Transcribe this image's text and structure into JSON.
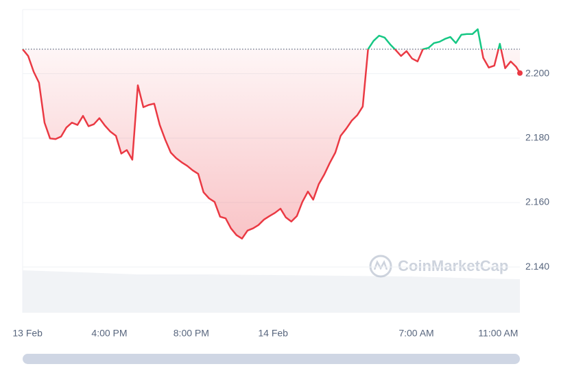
{
  "chart_data": {
    "type": "line",
    "watermark": "CoinMarketCap",
    "x": [
      11.76,
      12.03,
      12.3,
      12.56,
      12.83,
      13.1,
      13.37,
      13.64,
      13.9,
      14.17,
      14.44,
      14.71,
      14.98,
      15.24,
      15.51,
      15.78,
      16.05,
      16.32,
      16.58,
      16.85,
      17.12,
      17.39,
      17.66,
      17.92,
      18.19,
      18.46,
      18.73,
      19.0,
      19.26,
      19.53,
      19.8,
      20.07,
      20.34,
      20.6,
      20.87,
      21.14,
      21.41,
      21.68,
      21.94,
      22.21,
      22.48,
      22.75,
      23.02,
      23.28,
      23.55,
      23.82,
      24.09,
      24.36,
      24.62,
      24.89,
      25.16,
      25.43,
      25.7,
      25.96,
      26.23,
      26.5,
      26.77,
      27.04,
      27.3,
      27.57,
      27.84,
      28.11,
      28.38,
      28.64,
      28.91,
      29.18,
      29.45,
      29.72,
      29.98,
      30.25,
      30.52,
      30.79,
      31.06,
      31.32,
      31.59,
      31.86,
      32.13,
      32.4,
      32.66,
      32.93,
      33.2,
      33.47,
      33.74,
      34.0,
      34.27,
      34.54,
      34.81,
      35.08,
      35.34,
      35.61,
      35.88,
      36.06
    ],
    "values": [
      2.2076,
      2.2055,
      2.2006,
      2.1972,
      2.1848,
      2.1799,
      2.1797,
      2.1805,
      2.1833,
      2.1848,
      2.1841,
      2.1869,
      2.1837,
      2.1843,
      2.1862,
      2.1839,
      2.182,
      2.1807,
      2.1752,
      2.1763,
      2.1733,
      2.1964,
      2.1896,
      2.1903,
      2.1907,
      2.1841,
      2.1795,
      2.1755,
      2.1738,
      2.1725,
      2.1714,
      2.17,
      2.1689,
      2.1632,
      2.1613,
      2.1602,
      2.1556,
      2.1551,
      2.152,
      2.1499,
      2.1488,
      2.1513,
      2.152,
      2.153,
      2.1547,
      2.1558,
      2.1568,
      2.1581,
      2.1554,
      2.1541,
      2.1558,
      2.1602,
      2.1634,
      2.1609,
      2.1657,
      2.1687,
      2.1723,
      2.1755,
      2.1807,
      2.1829,
      2.1854,
      2.1871,
      2.1898,
      2.2076,
      2.2102,
      2.2118,
      2.2112,
      2.2091,
      2.2074,
      2.2055,
      2.207,
      2.2047,
      2.2038,
      2.2076,
      2.208,
      2.2095,
      2.2099,
      2.2108,
      2.2114,
      2.2095,
      2.2121,
      2.2123,
      2.2123,
      2.2138,
      2.2049,
      2.2019,
      2.2025,
      2.2093,
      2.2017,
      2.2038,
      2.2021,
      2.2002
    ],
    "baseline": 2.2076,
    "color_up": "#16c784",
    "color_down": "#ea3943",
    "xlim": [
      11.76,
      36.06
    ],
    "xticks": [
      {
        "value": 12,
        "label": "13 Feb"
      },
      {
        "value": 16,
        "label": "4:00 PM"
      },
      {
        "value": 20,
        "label": "8:00 PM"
      },
      {
        "value": 24,
        "label": "14 Feb"
      },
      {
        "value": 31,
        "label": "7:00 AM"
      },
      {
        "value": 35,
        "label": "11:00 AM"
      }
    ],
    "ylim": [
      2.1258,
      2.2199
    ],
    "yticks": [
      {
        "value": 2.14,
        "label": "2.140"
      },
      {
        "value": 2.16,
        "label": "2.160"
      },
      {
        "value": 2.18,
        "label": "2.180"
      },
      {
        "value": 2.2,
        "label": "2.200"
      }
    ],
    "grid": true
  }
}
